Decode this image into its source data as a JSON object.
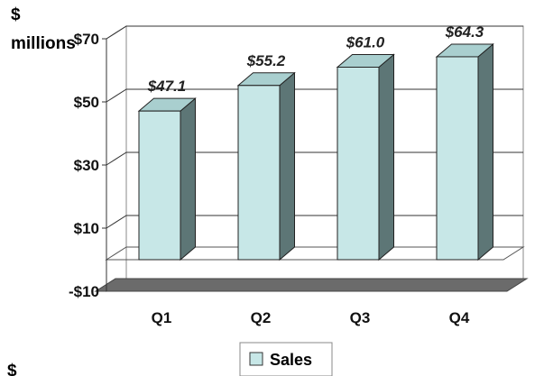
{
  "chart_data": {
    "type": "bar",
    "title": "",
    "ylabel": "$ millions",
    "ylabel_line1": "$",
    "ylabel_line2": "millions",
    "footer_mark": "$",
    "categories": [
      "Q1",
      "Q2",
      "Q3",
      "Q4"
    ],
    "series": [
      {
        "name": "Sales",
        "values": [
          47.1,
          55.2,
          61.0,
          64.3
        ],
        "labels": [
          "$47.1",
          "$55.2",
          "$61.0",
          "$64.3"
        ]
      }
    ],
    "ylim": [
      -10,
      70
    ],
    "yticks": [
      -10,
      10,
      30,
      50,
      70
    ],
    "ytick_labels": [
      "-$10",
      "$10",
      "$30",
      "$50",
      "$70"
    ],
    "legend": "bottom-center",
    "grid": true,
    "colors": {
      "bar_front": "#c7e7e7",
      "bar_side": "#5d7676",
      "bar_top": "#a9cfcf",
      "floor": "#6b6b6b"
    }
  }
}
